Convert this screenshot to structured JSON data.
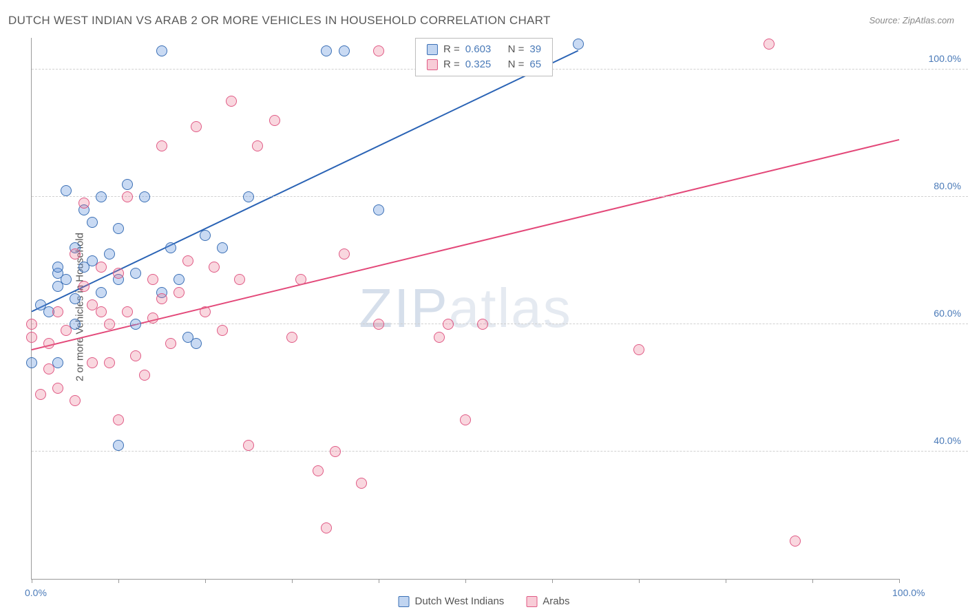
{
  "title": "DUTCH WEST INDIAN VS ARAB 2 OR MORE VEHICLES IN HOUSEHOLD CORRELATION CHART",
  "source": "Source: ZipAtlas.com",
  "y_axis_label": "2 or more Vehicles in Household",
  "watermark_bold": "ZIP",
  "watermark_thin": "atlas",
  "chart": {
    "type": "scatter",
    "xlim": [
      0,
      100
    ],
    "ylim": [
      20,
      105
    ],
    "y_ticks": [
      40,
      60,
      80,
      100
    ],
    "y_tick_labels": [
      "40.0%",
      "60.0%",
      "80.0%",
      "100.0%"
    ],
    "x_tick_marks": [
      0,
      10,
      20,
      30,
      40,
      50,
      60,
      70,
      80,
      90,
      100
    ],
    "x_tick_labels": [
      {
        "pos": 0,
        "label": "0.0%"
      },
      {
        "pos": 100,
        "label": "100.0%"
      }
    ],
    "background_color": "#ffffff",
    "grid_color": "#d0d0d0",
    "axis_color": "#999999",
    "tick_label_color": "#4a7ab8",
    "series": [
      {
        "name": "Dutch West Indians",
        "color_fill": "rgba(100,150,220,0.35)",
        "color_stroke": "#3a6fb5",
        "marker_size": 16,
        "r": 0.603,
        "n": 39,
        "trend": {
          "x0": 0,
          "y0": 62,
          "x1": 63,
          "y1": 103,
          "stroke": "#2a63b5",
          "width": 2
        },
        "points": [
          [
            1,
            63
          ],
          [
            2,
            62
          ],
          [
            3,
            68
          ],
          [
            3,
            69
          ],
          [
            3,
            66
          ],
          [
            4,
            67
          ],
          [
            4,
            81
          ],
          [
            5,
            72
          ],
          [
            5,
            64
          ],
          [
            5,
            60
          ],
          [
            6,
            69
          ],
          [
            6,
            78
          ],
          [
            7,
            70
          ],
          [
            7,
            76
          ],
          [
            8,
            80
          ],
          [
            8,
            65
          ],
          [
            9,
            71
          ],
          [
            10,
            67
          ],
          [
            10,
            75
          ],
          [
            11,
            82
          ],
          [
            12,
            68
          ],
          [
            12,
            60
          ],
          [
            13,
            80
          ],
          [
            15,
            65
          ],
          [
            15,
            103
          ],
          [
            16,
            72
          ],
          [
            17,
            67
          ],
          [
            18,
            58
          ],
          [
            19,
            57
          ],
          [
            20,
            74
          ],
          [
            22,
            72
          ],
          [
            25,
            80
          ],
          [
            34,
            103
          ],
          [
            36,
            103
          ],
          [
            40,
            78
          ],
          [
            0,
            54
          ],
          [
            3,
            54
          ],
          [
            10,
            41
          ],
          [
            63,
            104
          ]
        ]
      },
      {
        "name": "Arabs",
        "color_fill": "rgba(235,110,140,0.28)",
        "color_stroke": "#e05a85",
        "marker_size": 16,
        "r": 0.325,
        "n": 65,
        "trend": {
          "x0": 0,
          "y0": 56,
          "x1": 100,
          "y1": 89,
          "stroke": "#e34879",
          "width": 2
        },
        "points": [
          [
            0,
            60
          ],
          [
            0,
            58
          ],
          [
            1,
            49
          ],
          [
            2,
            57
          ],
          [
            2,
            53
          ],
          [
            3,
            50
          ],
          [
            3,
            62
          ],
          [
            4,
            59
          ],
          [
            5,
            71
          ],
          [
            5,
            48
          ],
          [
            6,
            66
          ],
          [
            6,
            79
          ],
          [
            7,
            63
          ],
          [
            7,
            54
          ],
          [
            8,
            69
          ],
          [
            8,
            62
          ],
          [
            9,
            60
          ],
          [
            9,
            54
          ],
          [
            10,
            45
          ],
          [
            10,
            68
          ],
          [
            11,
            62
          ],
          [
            11,
            80
          ],
          [
            12,
            55
          ],
          [
            13,
            52
          ],
          [
            14,
            61
          ],
          [
            14,
            67
          ],
          [
            15,
            64
          ],
          [
            15,
            88
          ],
          [
            16,
            57
          ],
          [
            17,
            65
          ],
          [
            18,
            70
          ],
          [
            19,
            91
          ],
          [
            20,
            62
          ],
          [
            21,
            69
          ],
          [
            22,
            59
          ],
          [
            23,
            95
          ],
          [
            24,
            67
          ],
          [
            25,
            41
          ],
          [
            26,
            88
          ],
          [
            28,
            92
          ],
          [
            30,
            58
          ],
          [
            31,
            67
          ],
          [
            33,
            37
          ],
          [
            34,
            28
          ],
          [
            35,
            40
          ],
          [
            36,
            71
          ],
          [
            38,
            35
          ],
          [
            40,
            60
          ],
          [
            40,
            103
          ],
          [
            47,
            58
          ],
          [
            48,
            60
          ],
          [
            50,
            45
          ],
          [
            52,
            60
          ],
          [
            70,
            56
          ],
          [
            85,
            104
          ],
          [
            88,
            26
          ]
        ]
      }
    ],
    "legend_top": {
      "rows": [
        {
          "swatch": "blue",
          "r_label": "R =",
          "r": "0.603",
          "n_label": "N =",
          "n": "39"
        },
        {
          "swatch": "pink",
          "r_label": "R =",
          "r": "0.325",
          "n_label": "N =",
          "n": "65"
        }
      ]
    },
    "legend_bottom": [
      {
        "swatch": "blue",
        "label": "Dutch West Indians"
      },
      {
        "swatch": "pink",
        "label": "Arabs"
      }
    ]
  }
}
